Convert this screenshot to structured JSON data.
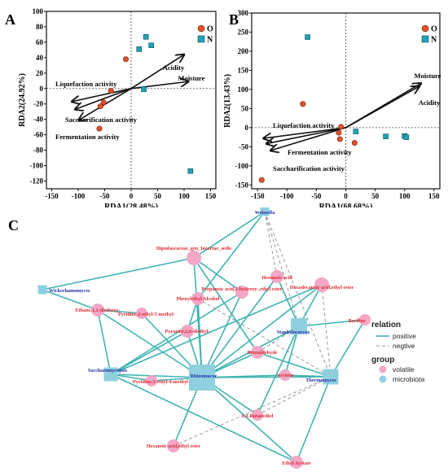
{
  "chart_data": [
    {
      "type": "scatter",
      "panel": "A",
      "xlabel": "RDA1(28.48%)",
      "ylabel": "RDA2(24.92%)",
      "xlim": [
        -160,
        160
      ],
      "ylim": [
        -130,
        100
      ],
      "xticks": [
        -150,
        -100,
        -50,
        0,
        50,
        100,
        150
      ],
      "yticks": [
        -120,
        -100,
        -80,
        -60,
        -40,
        -20,
        0,
        20,
        40,
        60,
        80,
        100
      ],
      "legend": [
        {
          "label": "O",
          "marker": "circle",
          "color": "#e0532c"
        },
        {
          "label": "N",
          "marker": "square",
          "color": "#1fa3b5"
        }
      ],
      "legend_position": "top-right",
      "series": [
        {
          "name": "O",
          "marker": "circle",
          "color": "#e0532c",
          "points": [
            [
              -10,
              38
            ],
            [
              -38,
              -3
            ],
            [
              -52,
              -18
            ],
            [
              -58,
              -23
            ],
            [
              -60,
              -52
            ]
          ]
        },
        {
          "name": "N",
          "marker": "square",
          "color": "#1fa3b5",
          "points": [
            [
              28,
              67
            ],
            [
              15,
              51
            ],
            [
              38,
              56
            ],
            [
              24,
              -1
            ],
            [
              112,
              -107
            ]
          ]
        }
      ],
      "vectors": [
        {
          "label": "Acidity",
          "x": 100,
          "y": 44
        },
        {
          "label": "Moisture",
          "x": 108,
          "y": 9
        },
        {
          "label": "Liquefaction activity",
          "x": -112,
          "y": -17
        },
        {
          "label": "Saccharification activity",
          "x": -106,
          "y": -27
        },
        {
          "label": "Fermentation activity",
          "x": -99,
          "y": -41
        }
      ]
    },
    {
      "type": "scatter",
      "panel": "B",
      "xlabel": "RDA1(68.68%)",
      "ylabel": "RDA2(13.43%)",
      "xlim": [
        -160,
        160
      ],
      "ylim": [
        -160,
        300
      ],
      "xticks": [
        -150,
        -100,
        -50,
        0,
        50,
        100,
        150
      ],
      "yticks": [
        -150,
        -100,
        -50,
        0,
        50,
        100,
        150,
        200,
        250,
        300
      ],
      "legend": [
        {
          "label": "O",
          "marker": "circle",
          "color": "#e0532c"
        },
        {
          "label": "N",
          "marker": "square",
          "color": "#1fa3b5"
        }
      ],
      "legend_position": "top-right",
      "series": [
        {
          "name": "O",
          "marker": "circle",
          "color": "#e0532c",
          "points": [
            [
              -73,
              62
            ],
            [
              -8,
              2
            ],
            [
              -12,
              -13
            ],
            [
              -10,
              -30
            ],
            [
              15,
              -40
            ],
            [
              -143,
              -137
            ]
          ]
        },
        {
          "name": "N",
          "marker": "square",
          "color": "#1fa3b5",
          "points": [
            [
              -65,
              237
            ],
            [
              17,
              -10
            ],
            [
              68,
              -23
            ],
            [
              100,
              -22
            ],
            [
              103,
              -25
            ]
          ]
        }
      ],
      "vectors": [
        {
          "label": "Moisture",
          "x": 125,
          "y": 108
        },
        {
          "label": "Acidity",
          "x": 128,
          "y": 116
        },
        {
          "label": "Liquefaction activity",
          "x": -140,
          "y": -28
        },
        {
          "label": "Fermentation activity",
          "x": -135,
          "y": -42
        },
        {
          "label": "Saccharification activity",
          "x": -128,
          "y": -60
        }
      ]
    }
  ],
  "panel_labels": {
    "a": "A",
    "b": "B",
    "c": "C"
  },
  "network": {
    "legend": {
      "relation_title": "relation",
      "positive": "positive",
      "negative": "negtive",
      "group_title": "group",
      "volatile": "volatile",
      "microbiota": "microbiota"
    },
    "colors": {
      "volatile": "#f2a7c6",
      "microbiota": "#8fd0e0",
      "positive_edge": "#3fb3b3",
      "negative_edge": "#9a9a9a"
    },
    "nodes": [
      {
        "id": "weissella",
        "label": "Weissella",
        "group": "microbiota"
      },
      {
        "id": "wickerhamomyces",
        "label": "Wickerhamomyces",
        "group": "microbiota"
      },
      {
        "id": "staphylococcus",
        "label": "Staphylococcus",
        "group": "microbiota"
      },
      {
        "id": "saccharomycopsis",
        "label": "Saccharomycopsis",
        "group": "microbiota"
      },
      {
        "id": "rhizomucor",
        "label": "Rhizomucor",
        "group": "microbiota"
      },
      {
        "id": "thermomyces",
        "label": "Thermomyces",
        "group": "microbiota"
      },
      {
        "id": "dipodascaceae",
        "label": "Dipodascaceae_gen_Incertae_sedis",
        "group": "volatile"
      },
      {
        "id": "hexanoic",
        "label": "Hexanoic acid",
        "group": "volatile"
      },
      {
        "id": "propanoic",
        "label": "Propanoic acid,2-hydroxy-,ethyl ester",
        "group": "volatile"
      },
      {
        "id": "hexadecanoic",
        "label": "Hexadecanoic acid,ethyl ester",
        "group": "volatile"
      },
      {
        "id": "phenylethyl",
        "label": "Phenylethyl Alcohol",
        "group": "volatile"
      },
      {
        "id": "ethane",
        "label": "Ethane,1,1-diethoxy-",
        "group": "volatile"
      },
      {
        "id": "pyridine25",
        "label": "Pyridine,2-ethyl-5-methyl-",
        "group": "volatile"
      },
      {
        "id": "bacillus",
        "label": "Bacillus",
        "group": "volatile"
      },
      {
        "id": "pyrazine",
        "label": "Pyrazine,2,6-diethyl-",
        "group": "volatile"
      },
      {
        "id": "benzaldehyde",
        "label": "Benzaldehyde",
        "group": "volatile"
      },
      {
        "id": "acetoin",
        "label": "Acetoin",
        "group": "volatile"
      },
      {
        "id": "pyridine34",
        "label": "Pyridine,3-ethyl-4-methyl-",
        "group": "volatile"
      },
      {
        "id": "butanediol",
        "label": "2,3-Butanediol",
        "group": "volatile"
      },
      {
        "id": "hexanoicester",
        "label": "Hexanoic acid,ethyl ester",
        "group": "volatile"
      },
      {
        "id": "ethylacetate",
        "label": "Ethyl Acetate",
        "group": "volatile"
      }
    ],
    "edges": [
      {
        "s": "weissella",
        "t": "dipodascaceae",
        "type": "positive"
      },
      {
        "s": "weissella",
        "t": "phenylethyl",
        "type": "positive"
      },
      {
        "s": "weissella",
        "t": "hexanoic",
        "type": "negative"
      },
      {
        "s": "weissella",
        "t": "staphylococcus",
        "type": "negative"
      },
      {
        "s": "weissella",
        "t": "thermomyces",
        "type": "negative"
      },
      {
        "s": "wickerhamomyces",
        "t": "dipodascaceae",
        "type": "positive"
      },
      {
        "s": "wickerhamomyces",
        "t": "ethane",
        "type": "positive"
      },
      {
        "s": "dipodascaceae",
        "t": "propanoic",
        "type": "positive"
      },
      {
        "s": "dipodascaceae",
        "t": "rhizomucor",
        "type": "positive"
      },
      {
        "s": "dipodascaceae",
        "t": "benzaldehyde",
        "type": "positive"
      },
      {
        "s": "hexanoic",
        "t": "rhizomucor",
        "type": "positive"
      },
      {
        "s": "hexanoic",
        "t": "staphylococcus",
        "type": "positive"
      },
      {
        "s": "propanoic",
        "t": "rhizomucor",
        "type": "positive"
      },
      {
        "s": "propanoic",
        "t": "saccharomycopsis",
        "type": "positive"
      },
      {
        "s": "hexadecanoic",
        "t": "rhizomucor",
        "type": "positive"
      },
      {
        "s": "hexadecanoic",
        "t": "saccharomycopsis",
        "type": "positive"
      },
      {
        "s": "hexadecanoic",
        "t": "staphylococcus",
        "type": "positive"
      },
      {
        "s": "phenylethyl",
        "t": "rhizomucor",
        "type": "positive"
      },
      {
        "s": "phenylethyl",
        "t": "pyrazine",
        "type": "positive"
      },
      {
        "s": "phenylethyl",
        "t": "thermomyces",
        "type": "negative"
      },
      {
        "s": "ethane",
        "t": "rhizomucor",
        "type": "positive"
      },
      {
        "s": "ethane",
        "t": "saccharomycopsis",
        "type": "positive"
      },
      {
        "s": "ethane",
        "t": "pyridine25",
        "type": "positive"
      },
      {
        "s": "pyridine25",
        "t": "rhizomucor",
        "type": "positive"
      },
      {
        "s": "pyrazine",
        "t": "rhizomucor",
        "type": "positive"
      },
      {
        "s": "pyrazine",
        "t": "saccharomycopsis",
        "type": "positive"
      },
      {
        "s": "bacillus",
        "t": "staphylococcus",
        "type": "positive"
      },
      {
        "s": "bacillus",
        "t": "thermomyces",
        "type": "positive"
      },
      {
        "s": "staphylococcus",
        "t": "rhizomucor",
        "type": "positive"
      },
      {
        "s": "staphylococcus",
        "t": "acetoin",
        "type": "positive"
      },
      {
        "s": "staphylococcus",
        "t": "butanediol",
        "type": "positive"
      },
      {
        "s": "staphylococcus",
        "t": "benzaldehyde",
        "type": "negative"
      },
      {
        "s": "benzaldehyde",
        "t": "rhizomucor",
        "type": "positive"
      },
      {
        "s": "benzaldehyde",
        "t": "thermomyces",
        "type": "positive"
      },
      {
        "s": "acetoin",
        "t": "rhizomucor",
        "type": "positive"
      },
      {
        "s": "acetoin",
        "t": "thermomyces",
        "type": "positive"
      },
      {
        "s": "saccharomycopsis",
        "t": "rhizomucor",
        "type": "positive"
      },
      {
        "s": "saccharomycopsis",
        "t": "pyridine34",
        "type": "positive"
      },
      {
        "s": "saccharomycopsis",
        "t": "ethylacetate",
        "type": "positive"
      },
      {
        "s": "pyridine34",
        "t": "rhizomucor",
        "type": "positive"
      },
      {
        "s": "rhizomucor",
        "t": "hexanoicester",
        "type": "positive"
      },
      {
        "s": "rhizomucor",
        "t": "butanediol",
        "type": "positive"
      },
      {
        "s": "rhizomucor",
        "t": "ethylacetate",
        "type": "positive"
      },
      {
        "s": "rhizomucor",
        "t": "thermomyces",
        "type": "positive"
      },
      {
        "s": "hexanoicester",
        "t": "thermomyces",
        "type": "negative"
      },
      {
        "s": "butanediol",
        "t": "thermomyces",
        "type": "negative"
      },
      {
        "s": "thermomyces",
        "t": "ethylacetate",
        "type": "positive"
      },
      {
        "s": "hexadecanoic",
        "t": "thermomyces",
        "type": "negative"
      }
    ]
  }
}
